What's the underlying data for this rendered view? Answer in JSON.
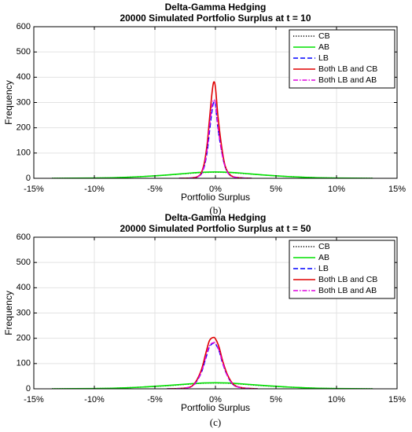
{
  "chart_data": [
    {
      "type": "line",
      "caption": "(b)",
      "title": "Delta-Gamma Hedging",
      "subtitle": "20000 Simulated Portfolio Surplus at t = 10",
      "xlabel": "Portfolio Surplus",
      "ylabel": "Frequency",
      "xlim": [
        -15,
        15
      ],
      "ylim": [
        0,
        600
      ],
      "xticks": [
        -15,
        -10,
        -5,
        0,
        5,
        10,
        15
      ],
      "xtick_labels": [
        "-15%",
        "-10%",
        "-5%",
        "0%",
        "5%",
        "10%",
        "15%"
      ],
      "yticks": [
        0,
        100,
        200,
        300,
        400,
        500,
        600
      ],
      "ytick_labels": [
        "0",
        "100",
        "200",
        "300",
        "400",
        "500",
        "600"
      ],
      "grid": true,
      "legend_position": "top-right",
      "series": [
        {
          "name": "CB",
          "color": "#000000",
          "style": "dotted",
          "x": [
            -13.5,
            -10,
            -8,
            -6,
            -4,
            -2,
            -1,
            0,
            1,
            2,
            4,
            6,
            8,
            10,
            13
          ],
          "y": [
            0,
            1,
            3,
            7,
            13,
            20,
            23,
            24,
            23,
            20,
            13,
            7,
            3,
            1,
            0
          ]
        },
        {
          "name": "AB",
          "color": "#00e000",
          "style": "solid",
          "x": [
            -13.5,
            -10,
            -8,
            -6,
            -4,
            -2,
            -1,
            0,
            1,
            2,
            4,
            6,
            8,
            10,
            13
          ],
          "y": [
            0,
            1,
            3,
            7,
            13,
            21,
            24,
            25,
            24,
            21,
            13,
            7,
            3,
            1,
            0
          ]
        },
        {
          "name": "LB",
          "color": "#0000ff",
          "style": "dashed",
          "x": [
            -3,
            -1.5,
            -1,
            -0.7,
            -0.5,
            -0.3,
            -0.15,
            0,
            0.2,
            0.5,
            0.8,
            1.2,
            1.8,
            3
          ],
          "y": [
            0,
            5,
            35,
            100,
            180,
            260,
            300,
            290,
            200,
            110,
            45,
            12,
            3,
            0
          ]
        },
        {
          "name": "Both LB and CB",
          "color": "#e00000",
          "style": "solid",
          "x": [
            -3,
            -1.5,
            -1,
            -0.7,
            -0.5,
            -0.3,
            -0.15,
            0,
            0.2,
            0.5,
            0.8,
            1.2,
            1.8,
            3
          ],
          "y": [
            0,
            6,
            45,
            130,
            230,
            330,
            380,
            360,
            250,
            130,
            50,
            14,
            3,
            0
          ]
        },
        {
          "name": "Both LB and AB",
          "color": "#e000e0",
          "style": "dashdot",
          "x": [
            -3,
            -1.5,
            -1,
            -0.7,
            -0.5,
            -0.3,
            -0.15,
            0,
            0.2,
            0.5,
            0.8,
            1.2,
            1.8,
            3
          ],
          "y": [
            0,
            5,
            38,
            110,
            200,
            280,
            310,
            295,
            205,
            110,
            45,
            12,
            3,
            0
          ]
        }
      ]
    },
    {
      "type": "line",
      "caption": "(c)",
      "title": "Delta-Gamma Hedging",
      "subtitle": "20000 Simulated Portfolio Surplus at t = 50",
      "xlabel": "Portfolio Surplus",
      "ylabel": "Frequency",
      "xlim": [
        -15,
        15
      ],
      "ylim": [
        0,
        600
      ],
      "xticks": [
        -15,
        -10,
        -5,
        0,
        5,
        10,
        15
      ],
      "xtick_labels": [
        "-15%",
        "-10%",
        "-5%",
        "0%",
        "5%",
        "10%",
        "15%"
      ],
      "yticks": [
        0,
        100,
        200,
        300,
        400,
        500,
        600
      ],
      "ytick_labels": [
        "0",
        "100",
        "200",
        "300",
        "400",
        "500",
        "600"
      ],
      "grid": true,
      "legend_position": "top-right",
      "series": [
        {
          "name": "CB",
          "color": "#000000",
          "style": "dotted",
          "x": [
            -13.5,
            -10,
            -8,
            -6,
            -4,
            -2,
            -1,
            0,
            1,
            2,
            4,
            6,
            8,
            10,
            13
          ],
          "y": [
            0,
            1,
            3,
            7,
            12,
            19,
            22,
            23,
            22,
            19,
            12,
            7,
            3,
            1,
            0
          ]
        },
        {
          "name": "AB",
          "color": "#00e000",
          "style": "solid",
          "x": [
            -13.5,
            -10,
            -8,
            -6,
            -4,
            -2,
            -1,
            0,
            1,
            2,
            4,
            6,
            8,
            10,
            13
          ],
          "y": [
            0,
            1,
            3,
            7,
            13,
            20,
            23,
            24,
            23,
            20,
            13,
            7,
            3,
            1,
            0
          ]
        },
        {
          "name": "LB",
          "color": "#0000ff",
          "style": "dashed",
          "x": [
            -4,
            -2.5,
            -1.8,
            -1.2,
            -0.8,
            -0.5,
            -0.2,
            0,
            0.3,
            0.6,
            1,
            1.5,
            2.2,
            3.5
          ],
          "y": [
            0,
            3,
            15,
            60,
            120,
            165,
            180,
            178,
            150,
            100,
            50,
            15,
            4,
            0
          ]
        },
        {
          "name": "Both LB and CB",
          "color": "#e00000",
          "style": "solid",
          "x": [
            -4,
            -2.5,
            -1.8,
            -1.2,
            -0.8,
            -0.5,
            -0.2,
            0,
            0.3,
            0.6,
            1,
            1.5,
            2.2,
            3.5
          ],
          "y": [
            0,
            3,
            17,
            70,
            140,
            190,
            203,
            198,
            165,
            110,
            55,
            17,
            4,
            0
          ]
        },
        {
          "name": "Both LB and AB",
          "color": "#e000e0",
          "style": "dashdot",
          "x": [
            -4,
            -2.5,
            -1.8,
            -1.2,
            -0.8,
            -0.5,
            -0.2,
            0,
            0.3,
            0.6,
            1,
            1.5,
            2.2,
            3.5
          ],
          "y": [
            0,
            3,
            15,
            62,
            125,
            170,
            182,
            180,
            152,
            102,
            50,
            15,
            4,
            0
          ]
        }
      ]
    }
  ]
}
